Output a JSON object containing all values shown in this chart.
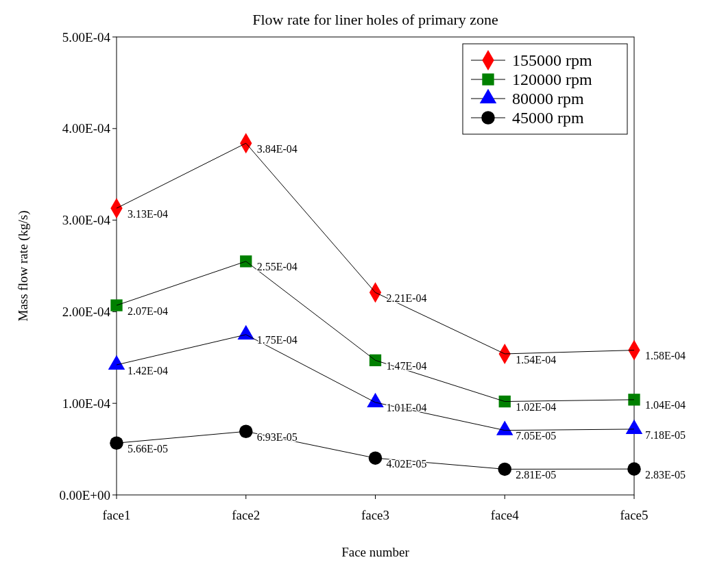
{
  "chart_data": {
    "type": "line",
    "title": "Flow rate for liner holes of primary zone",
    "xlabel": "Face number",
    "ylabel": "Mass flow rate (kg/s)",
    "categories": [
      "face1",
      "face2",
      "face3",
      "face4",
      "face5"
    ],
    "ylim": [
      0,
      0.0005
    ],
    "yticks": [
      {
        "value": 0,
        "label": "0.00E+00"
      },
      {
        "value": 0.0001,
        "label": "1.00E-04"
      },
      {
        "value": 0.0002,
        "label": "2.00E-04"
      },
      {
        "value": 0.0003,
        "label": "3.00E-04"
      },
      {
        "value": 0.0004,
        "label": "4.00E-04"
      },
      {
        "value": 0.0005,
        "label": "5.00E-04"
      }
    ],
    "grid": false,
    "legend": "top right",
    "line_style": "solid",
    "series": [
      {
        "name": "155000 rpm",
        "color": "#ff0000",
        "marker": "diamond",
        "values": [
          0.000313,
          0.000384,
          0.000221,
          0.000154,
          0.000158
        ],
        "value_labels": [
          "3.13E-04",
          "3.84E-04",
          "2.21E-04",
          "1.54E-04",
          "1.58E-04"
        ]
      },
      {
        "name": "120000 rpm",
        "color": "#008000",
        "marker": "square",
        "values": [
          0.000207,
          0.000255,
          0.000147,
          0.000102,
          0.000104
        ],
        "value_labels": [
          "2.07E-04",
          "2.55E-04",
          "1.47E-04",
          "1.02E-04",
          "1.04E-04"
        ]
      },
      {
        "name": "80000 rpm",
        "color": "#0000ff",
        "marker": "triangle",
        "values": [
          0.000142,
          0.000175,
          0.000101,
          7.05e-05,
          7.18e-05
        ],
        "value_labels": [
          "1.42E-04",
          "1.75E-04",
          "1.01E-04",
          "7.05E-05",
          "7.18E-05"
        ]
      },
      {
        "name": "45000 rpm",
        "color": "#000000",
        "marker": "circle",
        "values": [
          5.66e-05,
          6.93e-05,
          4.02e-05,
          2.81e-05,
          2.83e-05
        ],
        "value_labels": [
          "5.66E-05",
          "6.93E-05",
          "4.02E-05",
          "2.81E-05",
          "2.83E-05"
        ]
      }
    ]
  }
}
